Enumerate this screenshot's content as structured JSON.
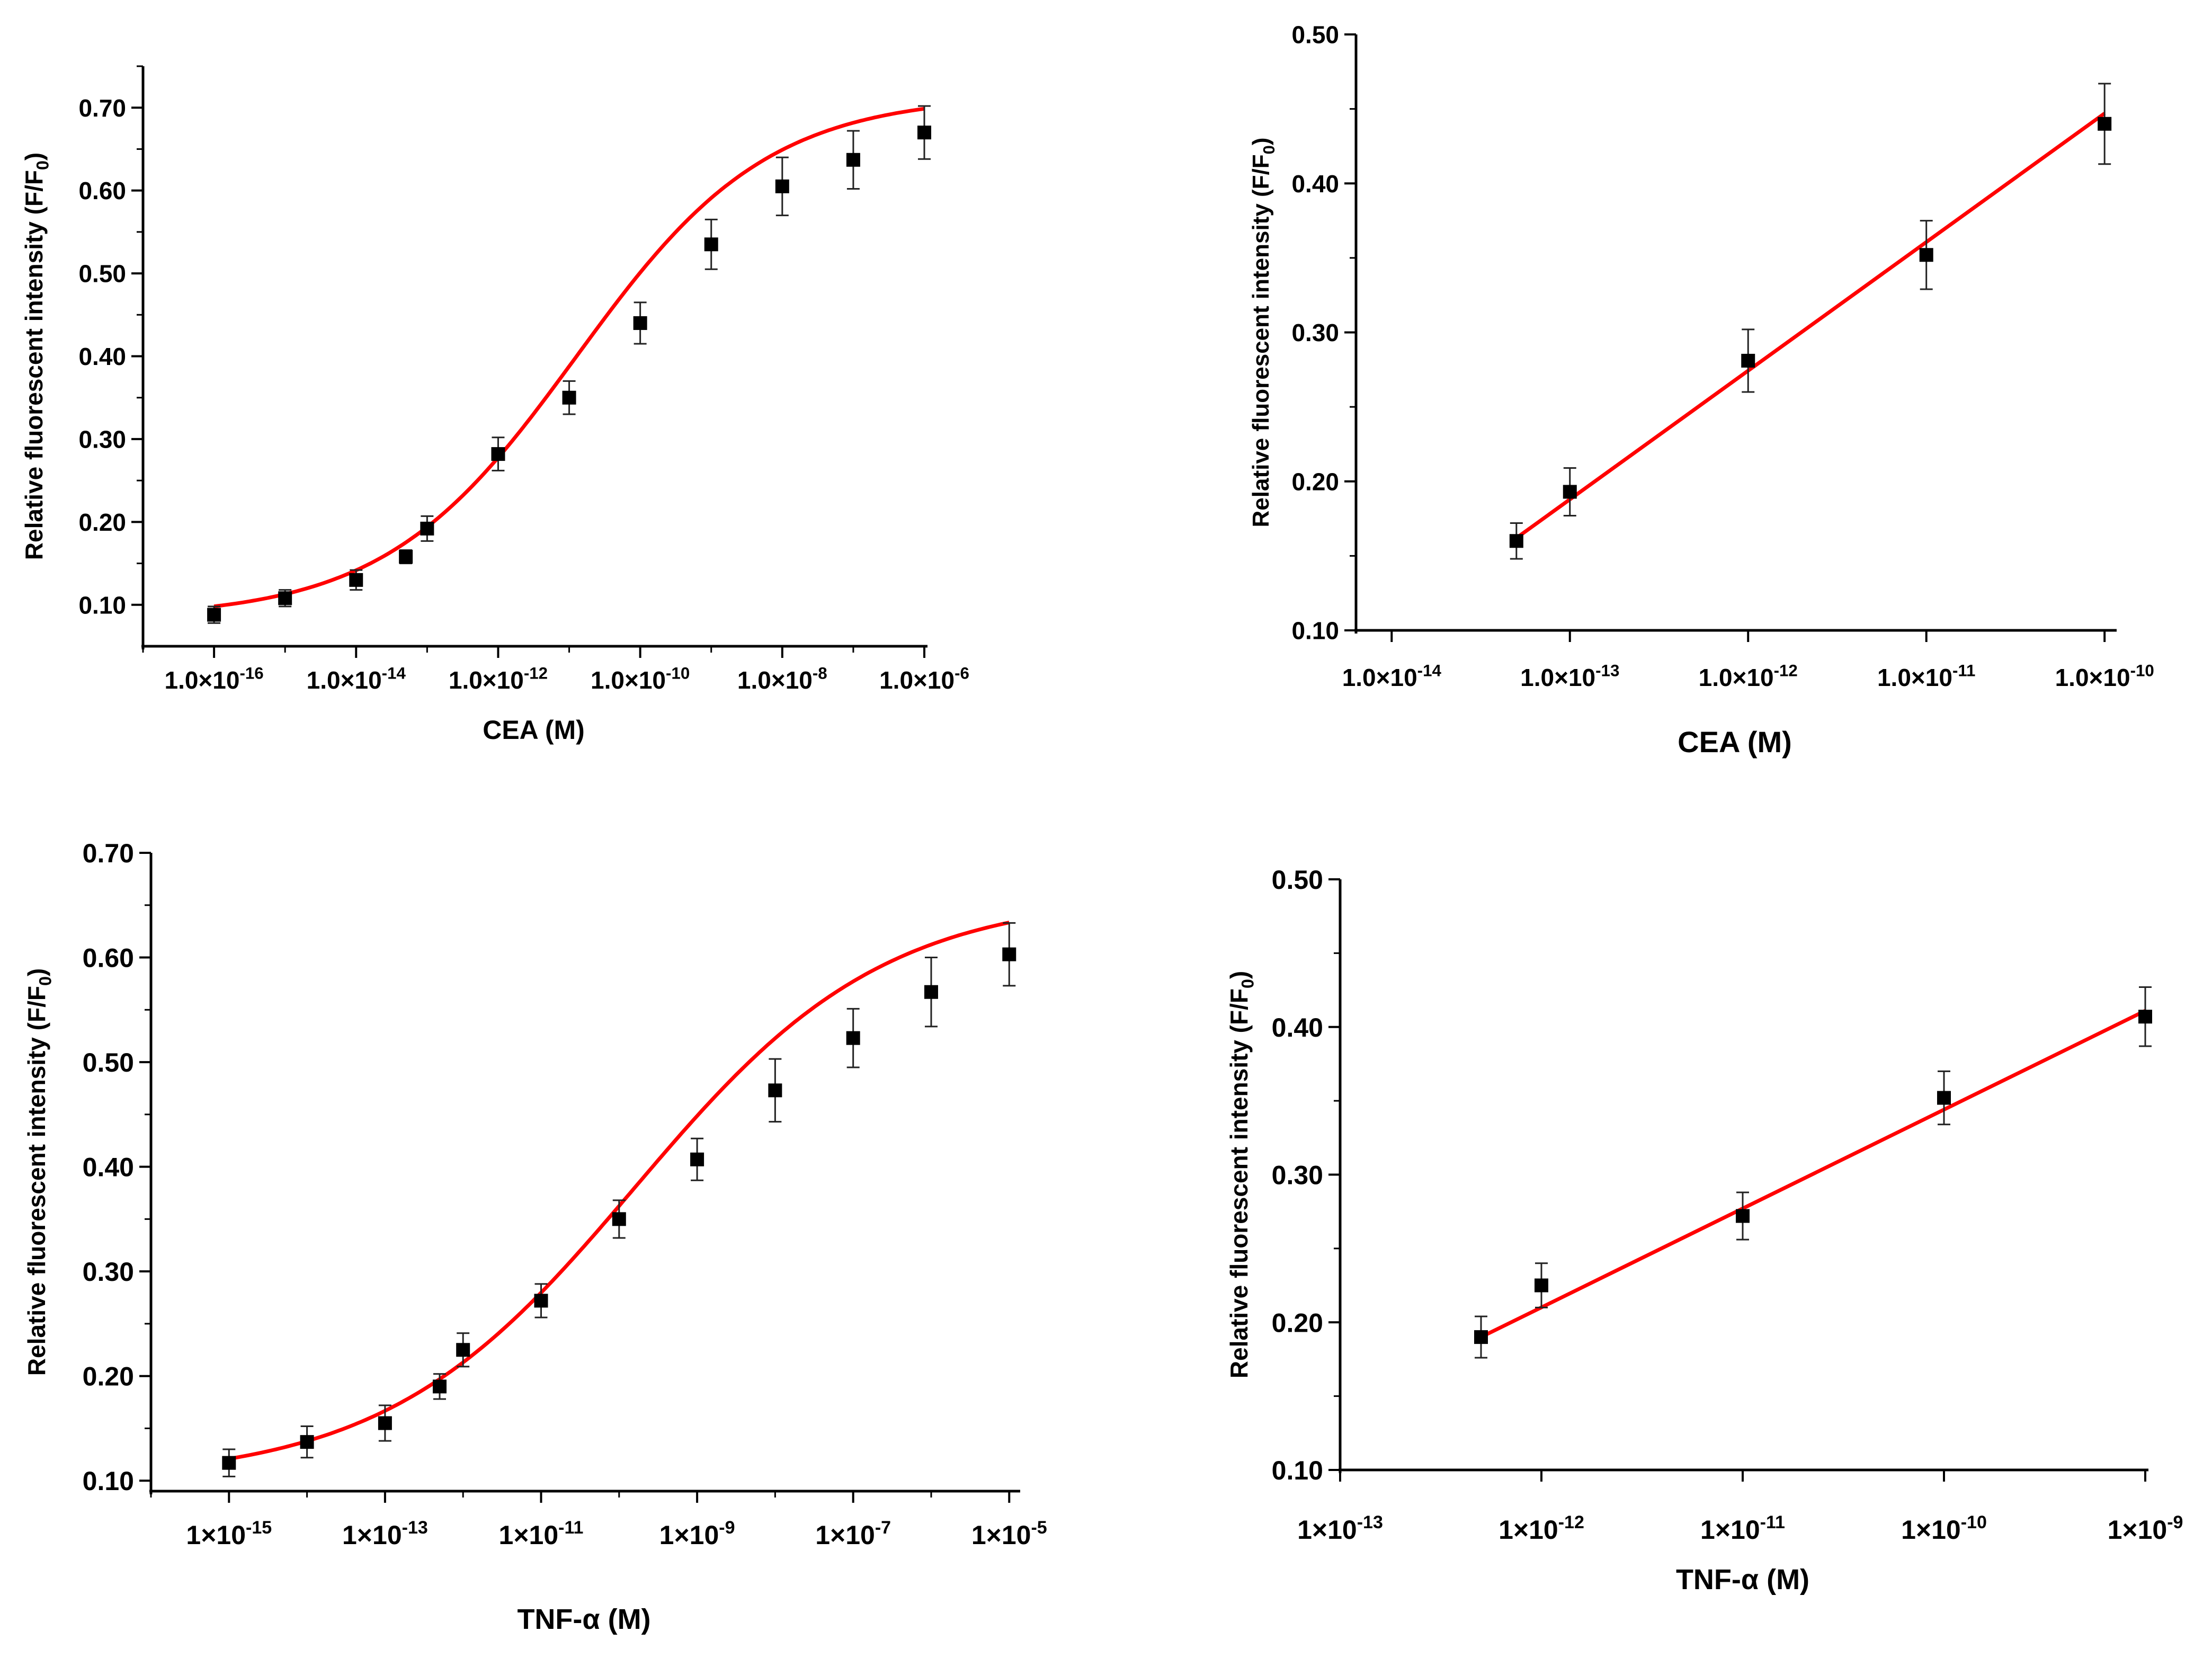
{
  "chart_data": [
    {
      "type": "scatter",
      "fit": "sigmoidal",
      "xscale": "log",
      "xlabel": "CEA (M)",
      "ylabel_main": "Relative fluorescent intensity (F/F",
      "ylabel_sub": "0",
      "ylabel_end": ")",
      "xlim_exp": [
        -17,
        -6
      ],
      "ylim": [
        0.05,
        0.75
      ],
      "xticks": [
        {
          "mant": "1.0×10",
          "exp": -16,
          "sup": "-16"
        },
        {
          "mant": "1.0×10",
          "exp": -14,
          "sup": "-14"
        },
        {
          "mant": "1.0×10",
          "exp": -12,
          "sup": "-12"
        },
        {
          "mant": "1.0×10",
          "exp": -10,
          "sup": "-10"
        },
        {
          "mant": "1.0×10",
          "exp": -8,
          "sup": "-8"
        },
        {
          "mant": "1.0×10",
          "exp": -6,
          "sup": "-6"
        }
      ],
      "yticks": [
        {
          "v": 0.1,
          "label": "0.10"
        },
        {
          "v": 0.2,
          "label": "0.20"
        },
        {
          "v": 0.3,
          "label": "0.30"
        },
        {
          "v": 0.4,
          "label": "0.40"
        },
        {
          "v": 0.5,
          "label": "0.50"
        },
        {
          "v": 0.6,
          "label": "0.60"
        },
        {
          "v": 0.7,
          "label": "0.70"
        }
      ],
      "points": [
        {
          "x": -16,
          "y": 0.088,
          "err": 0.01
        },
        {
          "x": -15,
          "y": 0.108,
          "err": 0.01
        },
        {
          "x": -14,
          "y": 0.13,
          "err": 0.012
        },
        {
          "x": -13.3,
          "y": 0.158,
          "err": 0.008
        },
        {
          "x": -13,
          "y": 0.192,
          "err": 0.015
        },
        {
          "x": -12,
          "y": 0.282,
          "err": 0.02
        },
        {
          "x": -11,
          "y": 0.35,
          "err": 0.02
        },
        {
          "x": -10,
          "y": 0.44,
          "err": 0.025
        },
        {
          "x": -9,
          "y": 0.535,
          "err": 0.03
        },
        {
          "x": -8,
          "y": 0.605,
          "err": 0.035
        },
        {
          "x": -7,
          "y": 0.637,
          "err": 0.035
        },
        {
          "x": -6,
          "y": 0.67,
          "err": 0.032
        }
      ],
      "fit_params": {
        "A1": 0.084,
        "A2": 0.715,
        "x0": -10.9,
        "dx": 1.35
      },
      "fit_color": "#ff0000"
    },
    {
      "type": "scatter",
      "fit": "linear",
      "xscale": "log",
      "xlabel": "CEA (M)",
      "ylabel_main": "Relative fluorescent intensity (F/F",
      "ylabel_sub": "0",
      "ylabel_end": ")",
      "xlim_exp": [
        -14.2,
        -9.95
      ],
      "ylim": [
        0.1,
        0.5
      ],
      "xticks": [
        {
          "mant": "1.0×10",
          "exp": -14,
          "sup": "-14"
        },
        {
          "mant": "1.0×10",
          "exp": -13,
          "sup": "-13"
        },
        {
          "mant": "1.0×10",
          "exp": -12,
          "sup": "-12"
        },
        {
          "mant": "1.0×10",
          "exp": -11,
          "sup": "-11"
        },
        {
          "mant": "1.0×10",
          "exp": -10,
          "sup": "-10"
        }
      ],
      "yticks": [
        {
          "v": 0.1,
          "label": "0.10"
        },
        {
          "v": 0.2,
          "label": "0.20"
        },
        {
          "v": 0.3,
          "label": "0.30"
        },
        {
          "v": 0.4,
          "label": "0.40"
        },
        {
          "v": 0.5,
          "label": "0.50"
        }
      ],
      "points": [
        {
          "x": -13.3,
          "y": 0.16,
          "err": 0.012
        },
        {
          "x": -13,
          "y": 0.193,
          "err": 0.016
        },
        {
          "x": -12,
          "y": 0.281,
          "err": 0.021
        },
        {
          "x": -11,
          "y": 0.352,
          "err": 0.023
        },
        {
          "x": -10,
          "y": 0.44,
          "err": 0.027
        }
      ],
      "fit_line": {
        "x": [
          -13.3,
          -10
        ],
        "y": [
          0.162,
          0.447
        ]
      },
      "fit_color": "#ff0000"
    },
    {
      "type": "scatter",
      "fit": "sigmoidal",
      "xscale": "log",
      "xlabel": "TNF-α (M)",
      "ylabel_main": "Relative fluorescent intensity (F/F",
      "ylabel_sub": "0",
      "ylabel_end": ")",
      "xlim_exp": [
        -16,
        -4.9
      ],
      "ylim": [
        0.09,
        0.7
      ],
      "xticks": [
        {
          "mant": "1×10",
          "exp": -15,
          "sup": "-15"
        },
        {
          "mant": "1×10",
          "exp": -13,
          "sup": "-13"
        },
        {
          "mant": "1×10",
          "exp": -11,
          "sup": "-11"
        },
        {
          "mant": "1×10",
          "exp": -9,
          "sup": "-9"
        },
        {
          "mant": "1×10",
          "exp": -7,
          "sup": "-7"
        },
        {
          "mant": "1×10",
          "exp": -5,
          "sup": "-5"
        }
      ],
      "yticks": [
        {
          "v": 0.1,
          "label": "0.10"
        },
        {
          "v": 0.2,
          "label": "0.20"
        },
        {
          "v": 0.3,
          "label": "0.30"
        },
        {
          "v": 0.4,
          "label": "0.40"
        },
        {
          "v": 0.5,
          "label": "0.50"
        },
        {
          "v": 0.6,
          "label": "0.60"
        },
        {
          "v": 0.7,
          "label": "0.70"
        }
      ],
      "points": [
        {
          "x": -15,
          "y": 0.117,
          "err": 0.013
        },
        {
          "x": -14,
          "y": 0.137,
          "err": 0.015
        },
        {
          "x": -13,
          "y": 0.155,
          "err": 0.017
        },
        {
          "x": -12.3,
          "y": 0.19,
          "err": 0.012
        },
        {
          "x": -12,
          "y": 0.225,
          "err": 0.016
        },
        {
          "x": -11,
          "y": 0.272,
          "err": 0.016
        },
        {
          "x": -10,
          "y": 0.35,
          "err": 0.018
        },
        {
          "x": -9,
          "y": 0.407,
          "err": 0.02
        },
        {
          "x": -8,
          "y": 0.473,
          "err": 0.03
        },
        {
          "x": -7,
          "y": 0.523,
          "err": 0.028
        },
        {
          "x": -6,
          "y": 0.567,
          "err": 0.033
        },
        {
          "x": -5,
          "y": 0.603,
          "err": 0.03
        }
      ],
      "fit_params": {
        "A1": 0.1,
        "A2": 0.66,
        "x0": -9.8,
        "dx": 1.6
      },
      "fit_color": "#ff0000"
    },
    {
      "type": "scatter",
      "fit": "linear",
      "xscale": "log",
      "xlabel": "TNF-α (M)",
      "ylabel_main": "Relative fluorescent intensity (F/F",
      "ylabel_sub": "0",
      "ylabel_end": ")",
      "xlim_exp": [
        -13,
        -9
      ],
      "ylim": [
        0.1,
        0.5
      ],
      "xticks": [
        {
          "mant": "1×10",
          "exp": -13,
          "sup": "-13"
        },
        {
          "mant": "1×10",
          "exp": -12,
          "sup": "-12"
        },
        {
          "mant": "1×10",
          "exp": -11,
          "sup": "-11"
        },
        {
          "mant": "1×10",
          "exp": -10,
          "sup": "-10"
        },
        {
          "mant": "1×10",
          "exp": -9,
          "sup": "-9"
        }
      ],
      "yticks": [
        {
          "v": 0.1,
          "label": "0.10"
        },
        {
          "v": 0.2,
          "label": "0.20"
        },
        {
          "v": 0.3,
          "label": "0.30"
        },
        {
          "v": 0.4,
          "label": "0.40"
        },
        {
          "v": 0.5,
          "label": "0.50"
        }
      ],
      "points": [
        {
          "x": -12.3,
          "y": 0.19,
          "err": 0.014
        },
        {
          "x": -12,
          "y": 0.225,
          "err": 0.015
        },
        {
          "x": -11,
          "y": 0.272,
          "err": 0.016
        },
        {
          "x": -10,
          "y": 0.352,
          "err": 0.018
        },
        {
          "x": -9,
          "y": 0.407,
          "err": 0.02
        }
      ],
      "fit_line": {
        "x": [
          -12.3,
          -9
        ],
        "y": [
          0.19,
          0.411
        ]
      },
      "fit_color": "#ff0000"
    }
  ]
}
